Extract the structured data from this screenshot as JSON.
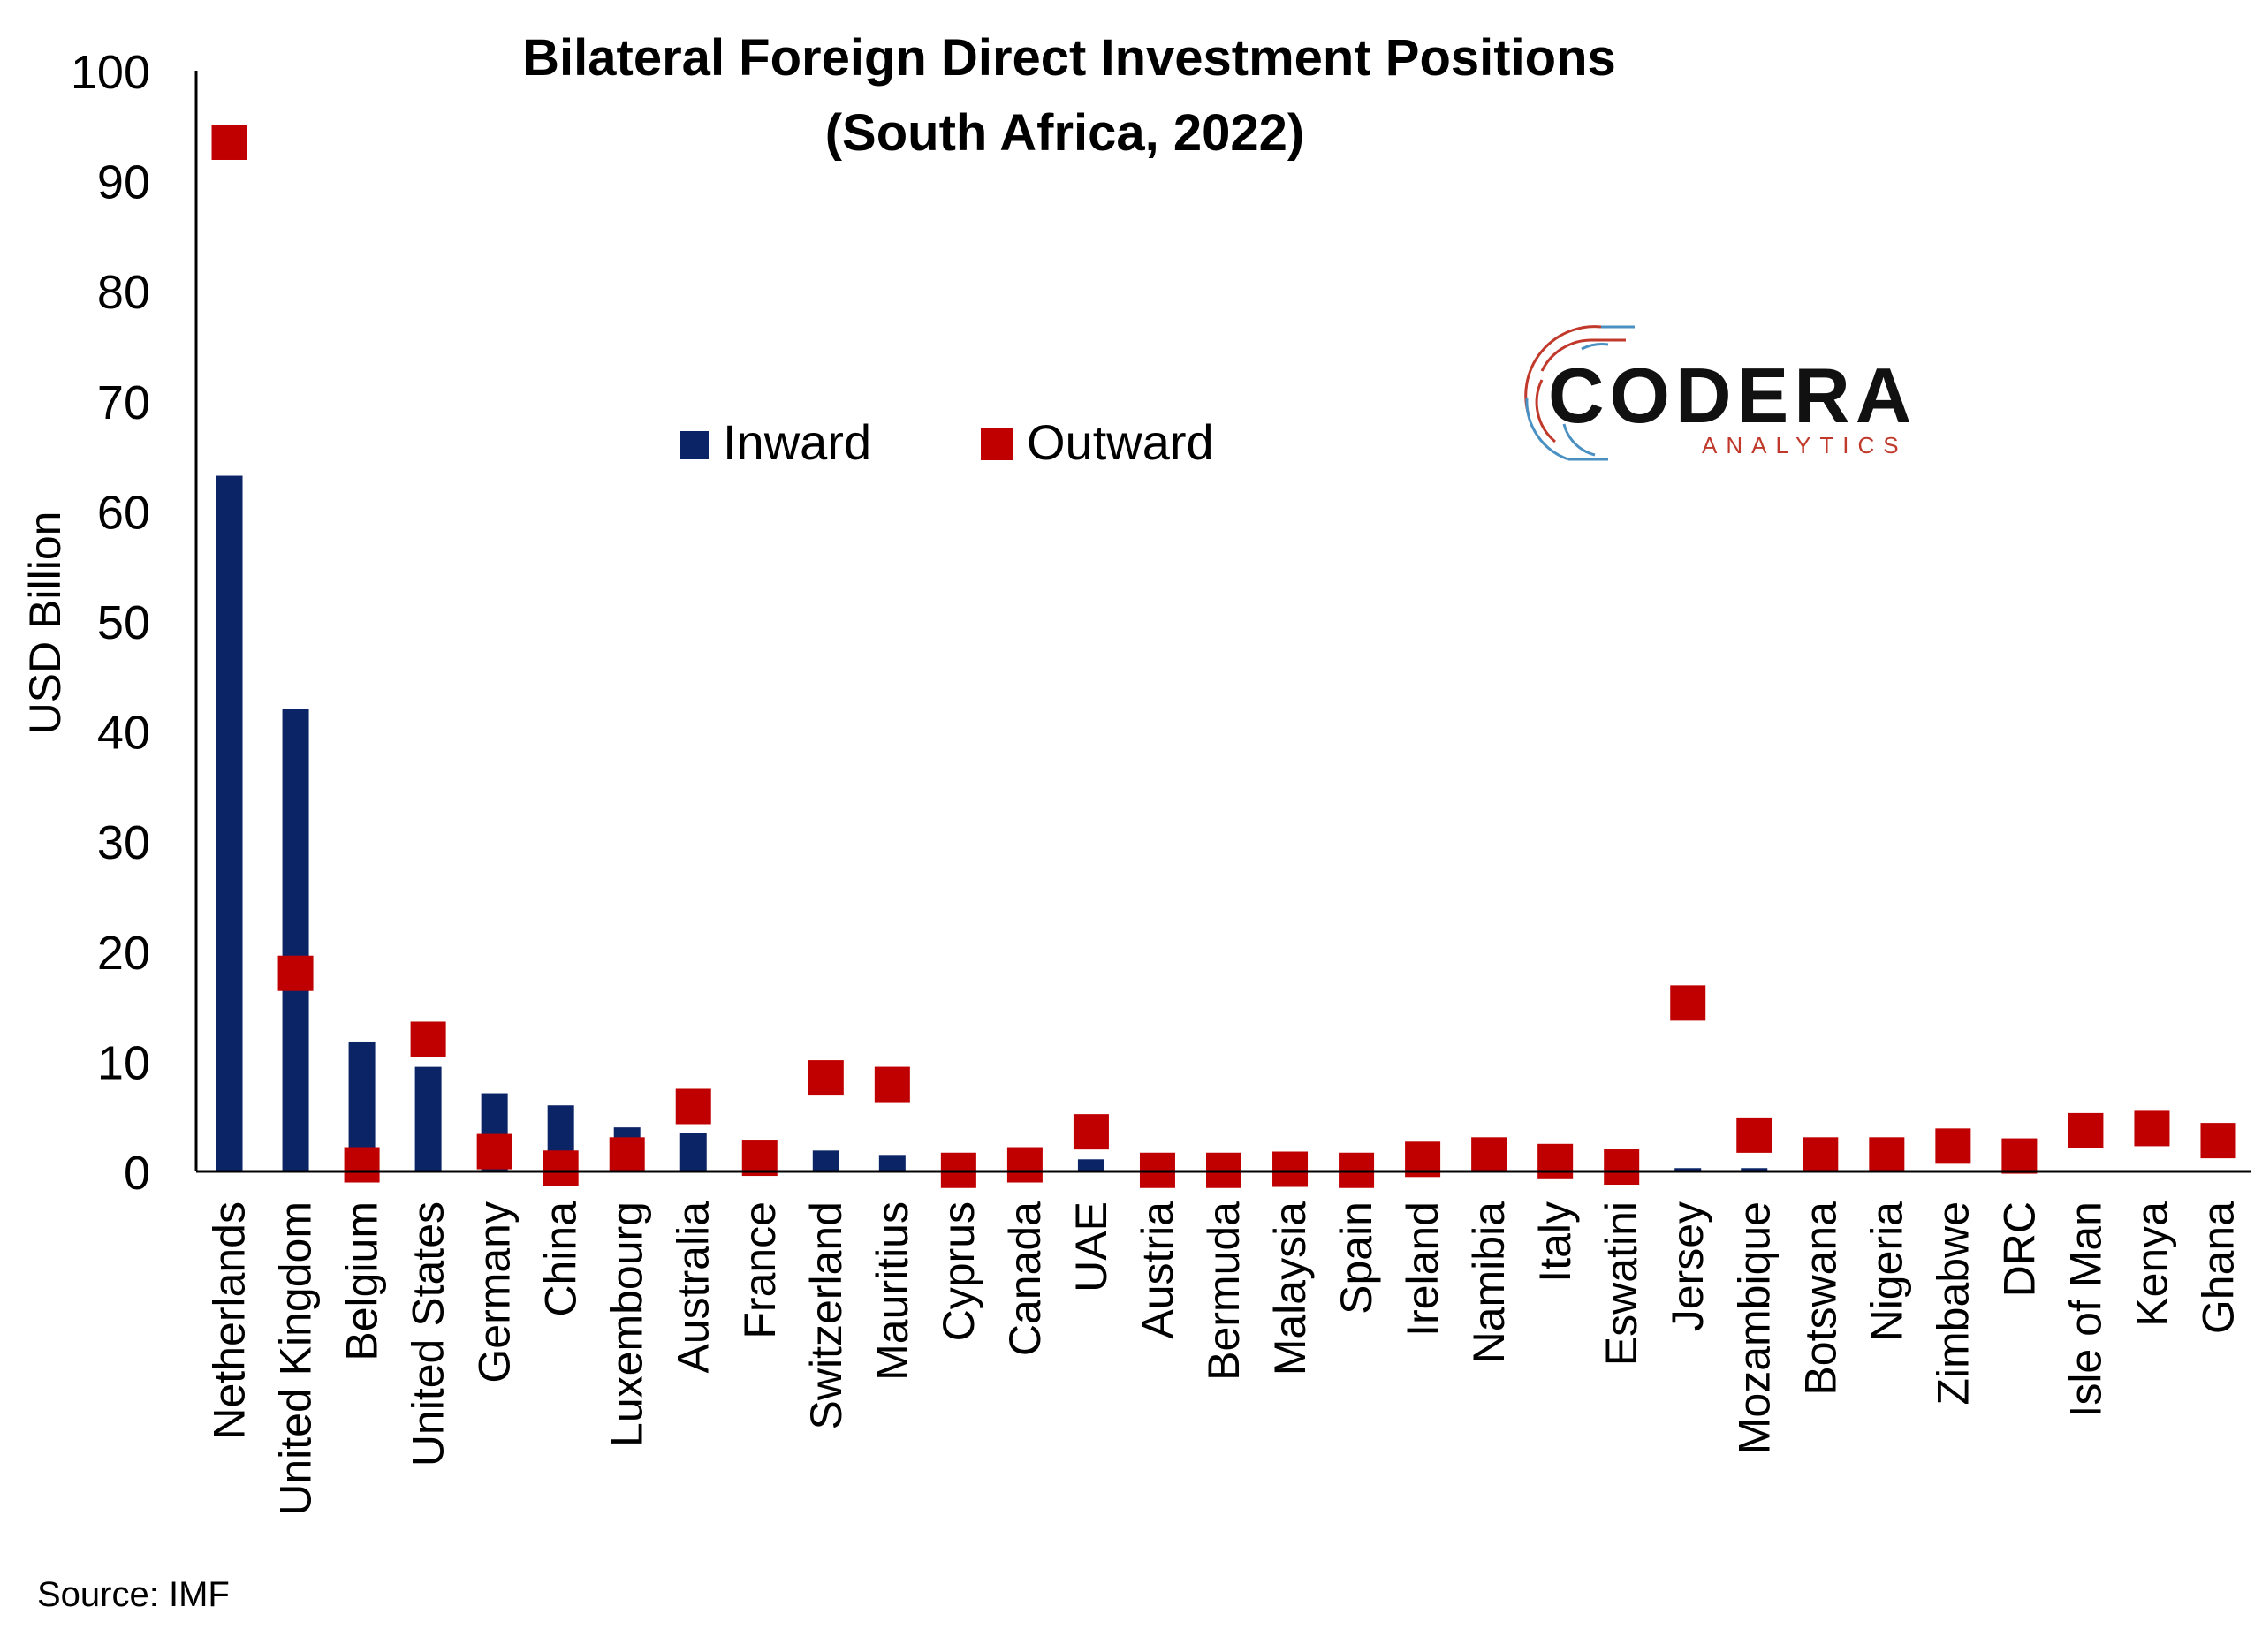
{
  "colors": {
    "inward": "#0B2466",
    "outward": "#C00000",
    "axis": "#000000",
    "logo_red": "#C0392B",
    "logo_blue": "#4A90C2"
  },
  "logo": {
    "name": "CODERA",
    "sub": "ANALYTICS"
  },
  "source": "Source: IMF",
  "chart_data": {
    "type": "bar",
    "title": "Bilateral Foreign Direct Investment Positions",
    "subtitle": "(South Africa, 2022)",
    "xlabel": "",
    "ylabel": "USD Billion",
    "ylim": [
      0,
      100
    ],
    "yticks": [
      0,
      10,
      20,
      30,
      40,
      50,
      60,
      70,
      80,
      90,
      100
    ],
    "grid": false,
    "legend_position": "top-center",
    "categories": [
      "Netherlands",
      "United Kingdom",
      "Belgium",
      "United States",
      "Germany",
      "China",
      "Luxembourg",
      "Australia",
      "France",
      "Switzerland",
      "Mauritius",
      "Cyprus",
      "Canada",
      "UAE",
      "Austria",
      "Bermuda",
      "Malaysia",
      "Spain",
      "Ireland",
      "Namibia",
      "Italy",
      "Eswatini",
      "Jersey",
      "Mozambique",
      "Botswana",
      "Nigeria",
      "Zimbabwe",
      "DRC",
      "Isle of Man",
      "Kenya",
      "Ghana"
    ],
    "series": [
      {
        "name": "Inward",
        "type": "bar",
        "values": [
          63.2,
          42.0,
          11.8,
          9.5,
          7.1,
          6.0,
          4.0,
          3.5,
          0.2,
          1.9,
          1.5,
          0.1,
          0.1,
          1.1,
          0.1,
          0.1,
          0.1,
          0.1,
          0.1,
          0.1,
          0.1,
          0.0,
          0.3,
          0.3,
          0.1,
          0.0,
          0.0,
          0.0,
          0.0,
          0.0,
          0.0
        ]
      },
      {
        "name": "Outward",
        "type": "scatter",
        "values": [
          93.5,
          18.0,
          0.6,
          12.0,
          1.8,
          0.3,
          1.5,
          5.9,
          1.2,
          8.5,
          7.9,
          0.1,
          0.6,
          3.6,
          0.1,
          0.1,
          0.2,
          0.1,
          1.1,
          1.5,
          0.9,
          0.4,
          15.3,
          3.3,
          1.5,
          1.5,
          2.3,
          1.4,
          3.7,
          3.9,
          2.8
        ]
      }
    ]
  }
}
